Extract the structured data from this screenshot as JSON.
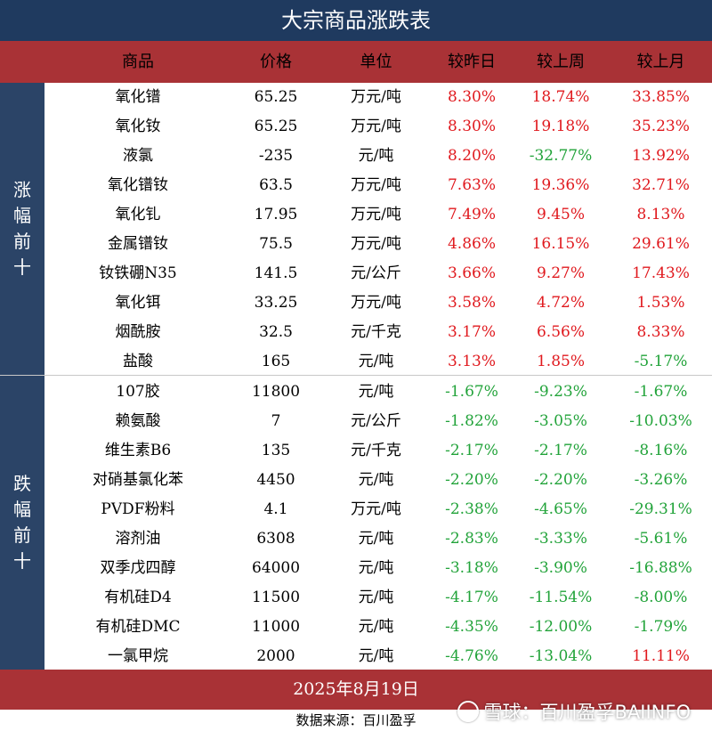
{
  "title": "大宗商品涨跌表",
  "header": {
    "name": "商品",
    "price": "价格",
    "unit": "单位",
    "day": "较昨日",
    "week": "较上周",
    "month": "较上月"
  },
  "groups": {
    "up": "涨幅前十",
    "down": "跌幅前十"
  },
  "rows": [
    {
      "name": "氧化镨",
      "price": "65.25",
      "unit": "万元/吨",
      "day": "8.30%",
      "week": "18.74%",
      "month": "33.85%"
    },
    {
      "name": "氧化钕",
      "price": "65.25",
      "unit": "万元/吨",
      "day": "8.30%",
      "week": "19.18%",
      "month": "35.23%"
    },
    {
      "name": "液氯",
      "price": "-235",
      "unit": "元/吨",
      "day": "8.20%",
      "week": "-32.77%",
      "month": "13.92%"
    },
    {
      "name": "氧化镨钕",
      "price": "63.5",
      "unit": "万元/吨",
      "day": "7.63%",
      "week": "19.36%",
      "month": "32.71%"
    },
    {
      "name": "氧化钆",
      "price": "17.95",
      "unit": "万元/吨",
      "day": "7.49%",
      "week": "9.45%",
      "month": "8.13%"
    },
    {
      "name": "金属镨钕",
      "price": "75.5",
      "unit": "万元/吨",
      "day": "4.86%",
      "week": "16.15%",
      "month": "29.61%"
    },
    {
      "name": "钕铁硼N35",
      "price": "141.5",
      "unit": "元/公斤",
      "day": "3.66%",
      "week": "9.27%",
      "month": "17.43%"
    },
    {
      "name": "氧化铒",
      "price": "33.25",
      "unit": "万元/吨",
      "day": "3.58%",
      "week": "4.72%",
      "month": "1.53%"
    },
    {
      "name": "烟酰胺",
      "price": "32.5",
      "unit": "元/千克",
      "day": "3.17%",
      "week": "6.56%",
      "month": "8.33%"
    },
    {
      "name": "盐酸",
      "price": "165",
      "unit": "元/吨",
      "day": "3.13%",
      "week": "1.85%",
      "month": "-5.17%"
    },
    {
      "name": "107胶",
      "price": "11800",
      "unit": "元/吨",
      "day": "-1.67%",
      "week": "-9.23%",
      "month": "-1.67%"
    },
    {
      "name": "赖氨酸",
      "price": "7",
      "unit": "元/公斤",
      "day": "-1.82%",
      "week": "-3.05%",
      "month": "-10.03%"
    },
    {
      "name": "维生素B6",
      "price": "135",
      "unit": "元/千克",
      "day": "-2.17%",
      "week": "-2.17%",
      "month": "-8.16%"
    },
    {
      "name": "对硝基氯化苯",
      "price": "4450",
      "unit": "元/吨",
      "day": "-2.20%",
      "week": "-2.20%",
      "month": "-3.26%"
    },
    {
      "name": "PVDF粉料",
      "price": "4.1",
      "unit": "万元/吨",
      "day": "-2.38%",
      "week": "-4.65%",
      "month": "-29.31%"
    },
    {
      "name": "溶剂油",
      "price": "6308",
      "unit": "元/吨",
      "day": "-2.83%",
      "week": "-3.33%",
      "month": "-5.61%"
    },
    {
      "name": "双季戊四醇",
      "price": "64000",
      "unit": "元/吨",
      "day": "-3.18%",
      "week": "-3.90%",
      "month": "-16.88%"
    },
    {
      "name": "有机硅D4",
      "price": "11500",
      "unit": "元/吨",
      "day": "-4.17%",
      "week": "-11.54%",
      "month": "-8.00%"
    },
    {
      "name": "有机硅DMC",
      "price": "11000",
      "unit": "元/吨",
      "day": "-4.35%",
      "week": "-12.00%",
      "month": "-1.79%"
    },
    {
      "name": "一氯甲烷",
      "price": "2000",
      "unit": "元/吨",
      "day": "-4.76%",
      "week": "-13.04%",
      "month": "11.11%"
    }
  ],
  "date": "2025年8月19日",
  "source": "数据来源：百川盈孚",
  "watermark": "雪球：百川盈孚BAIINFO",
  "colors": {
    "title_bg": "#1f3a5f",
    "header_bg": "#a93236",
    "group_bg": "#2b4467",
    "positive": "#e0191e",
    "negative": "#22a33a"
  }
}
